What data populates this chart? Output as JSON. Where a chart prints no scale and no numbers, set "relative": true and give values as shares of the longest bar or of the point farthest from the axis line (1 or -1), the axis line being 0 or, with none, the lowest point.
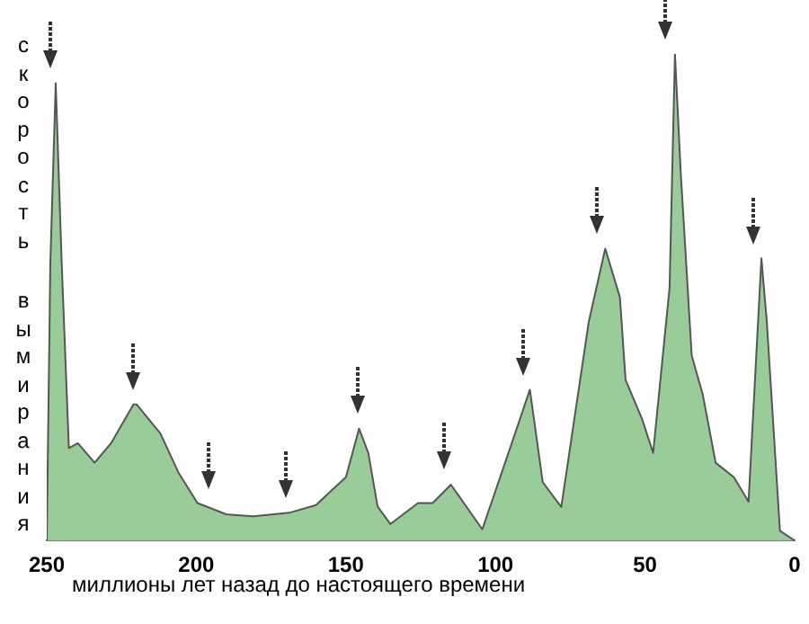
{
  "chart_data": {
    "type": "area",
    "ylabel": "скорость вымирания",
    "xlabel": "миллионы лет назад до настоящего времени",
    "relative": true,
    "xlim": [
      250,
      0
    ],
    "xticks": [
      250,
      200,
      150,
      100,
      50,
      0
    ],
    "tick_labels": "x",
    "grid": false,
    "legend": false,
    "series": [
      {
        "color": "#99cc99",
        "x": [
          250,
          248.8,
          247,
          245,
          242.6,
          239.6,
          234,
          228.5,
          221,
          220,
          212,
          206,
          199.6,
          190,
          181,
          169,
          160,
          153.6,
          150,
          145.6,
          142.5,
          139.4,
          135.1,
          125.9,
          121,
          114.9,
          104.4,
          94,
          88.5,
          84.2,
          78,
          68.8,
          63.3,
          58.4,
          56.5,
          51,
          47.3,
          41.8,
          40,
          38.1,
          34.4,
          30.7,
          26.4,
          20.3,
          15.4,
          11.1,
          9.3,
          4.9,
          0
        ],
        "values": [
          0,
          0.57,
          0.94,
          0.57,
          0.19,
          0.2,
          0.16,
          0.2,
          0.28,
          0.28,
          0.22,
          0.14,
          0.077,
          0.054,
          0.05,
          0.057,
          0.073,
          0.11,
          0.13,
          0.23,
          0.18,
          0.07,
          0.034,
          0.077,
          0.077,
          0.115,
          0.023,
          0.21,
          0.31,
          0.12,
          0.069,
          0.45,
          0.6,
          0.5,
          0.33,
          0.25,
          0.18,
          0.52,
          1,
          0.76,
          0.38,
          0.3,
          0.16,
          0.13,
          0.08,
          0.58,
          0.45,
          0.02,
          0
        ]
      }
    ]
  }
}
